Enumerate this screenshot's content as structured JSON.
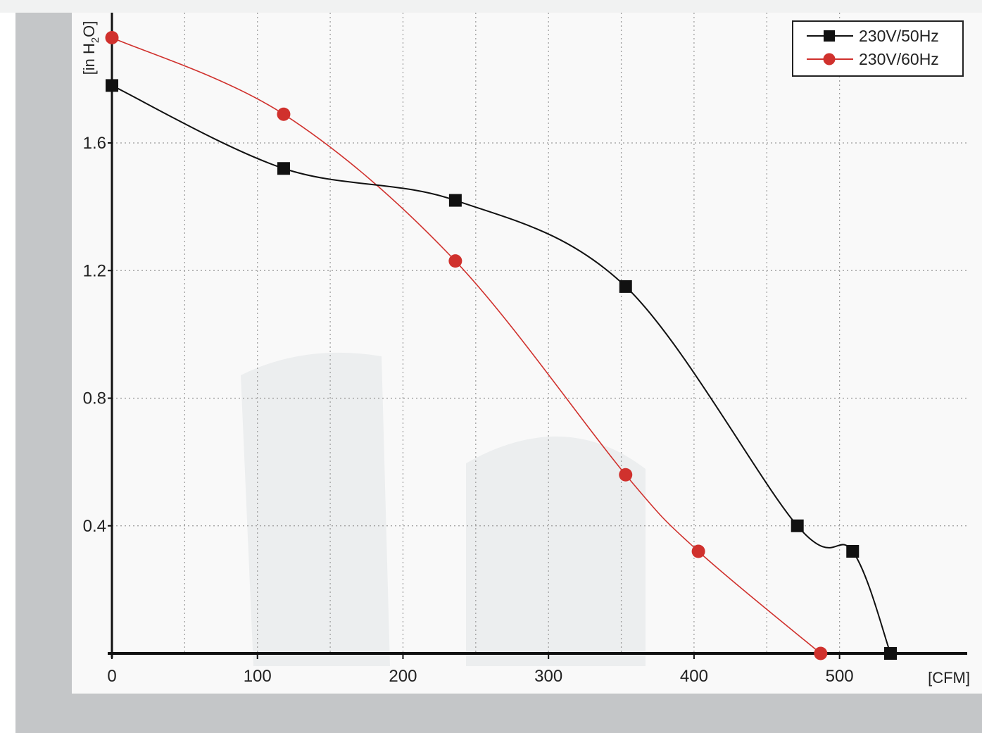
{
  "chart_data": {
    "type": "line",
    "title": "",
    "xlabel": "[CFM]",
    "ylabel": "[in H2O]",
    "ylabel_parts": {
      "pre": "[in H",
      "sub": "2",
      "post": "O]"
    },
    "xlim": [
      0,
      535
    ],
    "ylim": [
      0,
      2.0
    ],
    "x_ticks": [
      0,
      100,
      200,
      300,
      400,
      500
    ],
    "x_tick_labels": [
      "0",
      "100",
      "200",
      "300",
      "400",
      "500"
    ],
    "y_ticks": [
      0.4,
      0.8,
      1.2,
      1.6
    ],
    "y_tick_labels": [
      "0.4",
      "0.8",
      "1.2",
      "1.6"
    ],
    "x_grid_minor_step": 50,
    "grid": true,
    "grid_style": "dotted",
    "legend_position": "top-right",
    "series": [
      {
        "name": "230V/50Hz",
        "color": "#111111",
        "marker": "square",
        "points": [
          {
            "x": 0,
            "y": 1.78
          },
          {
            "x": 118,
            "y": 1.52
          },
          {
            "x": 236,
            "y": 1.42
          },
          {
            "x": 353,
            "y": 1.15
          },
          {
            "x": 471,
            "y": 0.4
          },
          {
            "x": 509,
            "y": 0.32
          },
          {
            "x": 535,
            "y": 0.0
          }
        ]
      },
      {
        "name": "230V/60Hz",
        "color": "#d0312d",
        "marker": "circle",
        "points": [
          {
            "x": 0,
            "y": 1.93
          },
          {
            "x": 118,
            "y": 1.69
          },
          {
            "x": 236,
            "y": 1.23
          },
          {
            "x": 353,
            "y": 0.56
          },
          {
            "x": 403,
            "y": 0.32
          },
          {
            "x": 487,
            "y": 0.0
          }
        ]
      }
    ]
  }
}
